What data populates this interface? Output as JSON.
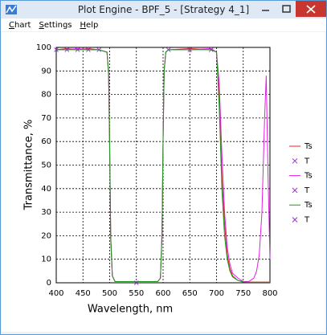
{
  "window": {
    "title": "Plot Engine - BPF_5 - [Strategy 4_1]",
    "menu": [
      "Chart",
      "Settings",
      "Help"
    ]
  },
  "chart_data": {
    "type": "line",
    "x_label": "Wavelength, nm",
    "y_label": "Transmittance, %",
    "x": [
      400,
      420,
      440,
      460,
      480,
      495,
      498,
      500,
      502,
      505,
      510,
      550,
      590,
      595,
      598,
      600,
      602,
      605,
      610,
      650,
      690,
      700,
      705,
      710,
      715,
      720,
      725,
      730,
      740,
      750,
      760,
      770,
      775,
      780,
      785,
      790,
      793,
      796,
      800
    ],
    "series": [
      {
        "name": "Ts",
        "color": "#e8202a",
        "mode": "line",
        "values": [
          99,
          99.5,
          99,
          99.5,
          99,
          98,
          90,
          60,
          20,
          3,
          0.5,
          0.5,
          0.5,
          2,
          20,
          60,
          90,
          98,
          99,
          99.5,
          99,
          98,
          80,
          45,
          25,
          12,
          6,
          3,
          1,
          0.5,
          0.3,
          0.3,
          0.3,
          0.3,
          0.3,
          0.3,
          0.3,
          0.3,
          0.3
        ]
      },
      {
        "name": "T",
        "color": "#9933cc",
        "mode": "markers",
        "values": [
          99,
          99,
          99,
          99,
          99,
          null,
          null,
          null,
          null,
          null,
          null,
          null,
          null,
          null,
          null,
          null,
          null,
          null,
          null,
          null,
          null,
          null,
          null,
          null,
          null,
          null,
          null,
          null,
          null,
          null,
          null,
          null,
          null,
          null,
          null,
          null,
          null,
          null,
          null
        ]
      },
      {
        "name": "Ts",
        "color": "#e020e0",
        "mode": "line",
        "values": [
          99,
          99,
          99.5,
          99,
          99,
          98,
          88,
          55,
          18,
          3,
          0.5,
          0.5,
          0.5,
          2,
          22,
          62,
          90,
          98,
          99,
          99,
          99.5,
          98,
          85,
          55,
          30,
          15,
          8,
          4,
          2,
          0.5,
          0.5,
          2,
          5,
          12,
          30,
          70,
          88,
          50,
          10
        ]
      },
      {
        "name": "T",
        "color": "#9933cc",
        "mode": "markers",
        "values": [
          null,
          null,
          null,
          null,
          null,
          null,
          null,
          null,
          null,
          null,
          null,
          null,
          null,
          null,
          null,
          null,
          null,
          null,
          99,
          99,
          99,
          null,
          null,
          null,
          null,
          null,
          null,
          null,
          null,
          null,
          null,
          null,
          null,
          null,
          null,
          null,
          null,
          null,
          null
        ]
      },
      {
        "name": "Ts",
        "color": "#1a9a1a",
        "mode": "line",
        "values": [
          99,
          99,
          99,
          99,
          99,
          98,
          89,
          58,
          19,
          3,
          0.5,
          0.5,
          0.5,
          2,
          21,
          61,
          90,
          98,
          99,
          99,
          99,
          98,
          75,
          40,
          20,
          10,
          5,
          2.5,
          1,
          0.3,
          0.2,
          0.2,
          0.2,
          0.2,
          0.2,
          0.2,
          0.2,
          0.2,
          0.2
        ]
      },
      {
        "name": "T",
        "color": "#9933cc",
        "mode": "markers",
        "values": [
          null,
          null,
          null,
          null,
          null,
          null,
          null,
          null,
          null,
          null,
          null,
          0,
          null,
          null,
          null,
          null,
          null,
          null,
          null,
          null,
          null,
          null,
          null,
          null,
          null,
          null,
          null,
          null,
          null,
          null,
          null,
          null,
          null,
          null,
          null,
          null,
          null,
          null,
          null
        ]
      }
    ],
    "xlim": [
      400,
      800
    ],
    "xticks": [
      400,
      450,
      500,
      550,
      600,
      650,
      700,
      750,
      800
    ],
    "ylim": [
      0,
      100
    ],
    "yticks": [
      0,
      10,
      20,
      30,
      40,
      50,
      60,
      70,
      80,
      90,
      100
    ],
    "grid": true,
    "legend": "right"
  }
}
